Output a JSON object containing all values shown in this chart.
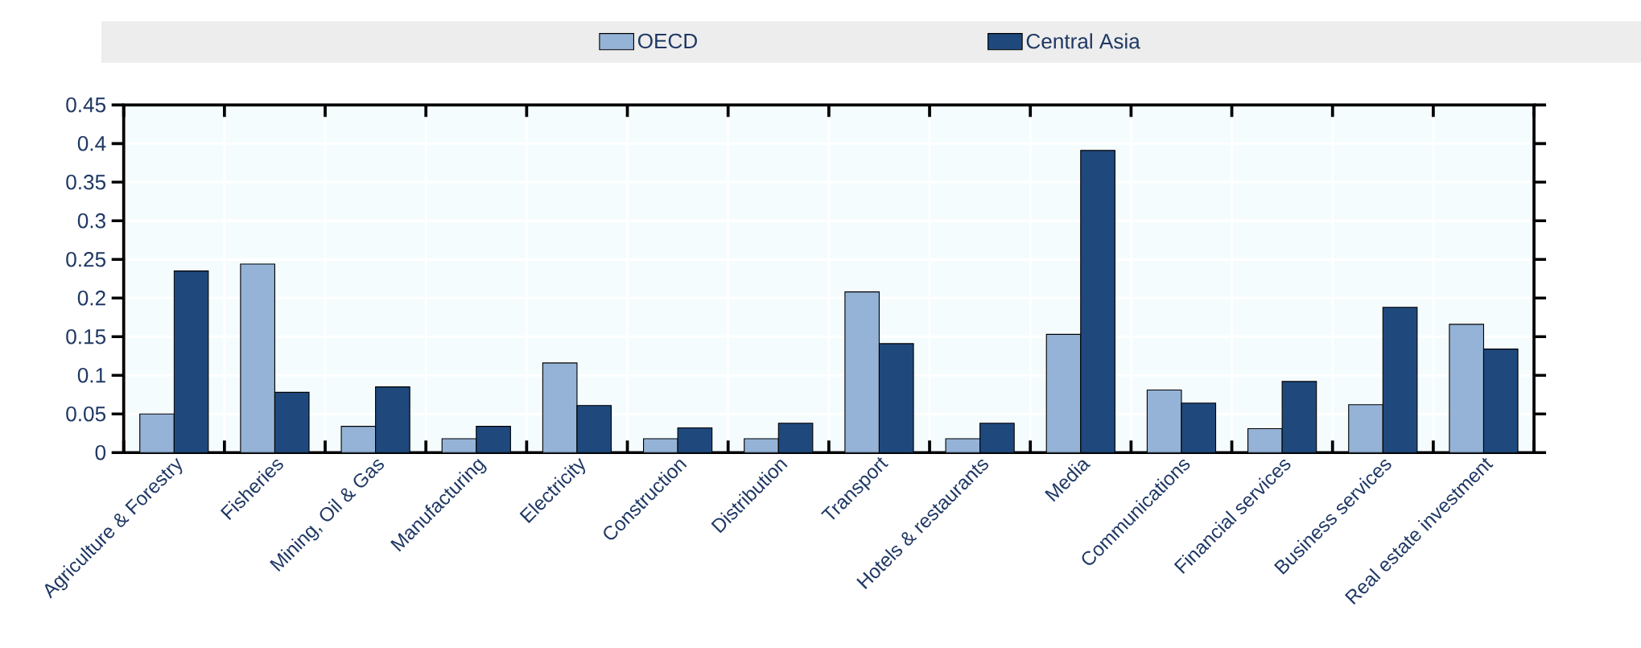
{
  "chart_data": {
    "type": "bar",
    "legend": "top",
    "grid": true,
    "categories": [
      "Agriculture & Forestry",
      "Fisheries",
      "Mining, Oil & Gas",
      "Manufacturing",
      "Electricity",
      "Construction",
      "Distribution",
      "Transport",
      "Hotels & restaurants",
      "Media",
      "Communications",
      "Financial services",
      "Business services",
      "Real estate investment"
    ],
    "series": [
      {
        "name": "OECD",
        "color": "#95b3d7",
        "values": [
          0.05,
          0.244,
          0.034,
          0.018,
          0.116,
          0.018,
          0.018,
          0.208,
          0.018,
          0.153,
          0.081,
          0.031,
          0.062,
          0.166
        ]
      },
      {
        "name": "Central Asia",
        "color": "#1f497d",
        "values": [
          0.235,
          0.078,
          0.085,
          0.034,
          0.061,
          0.032,
          0.038,
          0.141,
          0.038,
          0.391,
          0.064,
          0.092,
          0.188,
          0.134
        ]
      }
    ],
    "ylim": [
      0,
      0.45
    ],
    "yticks": [
      0,
      0.05,
      0.1,
      0.15,
      0.2,
      0.25,
      0.3,
      0.35,
      0.4,
      0.45
    ]
  }
}
